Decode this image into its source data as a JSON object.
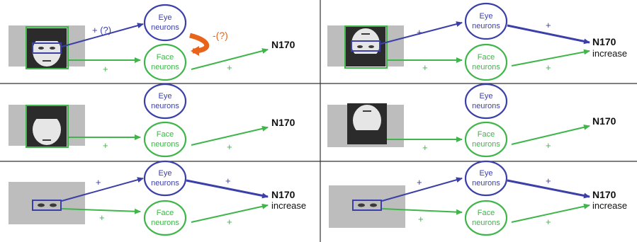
{
  "colors": {
    "eye": "#3b3fa8",
    "face": "#3fb54a",
    "inhibition": "#e8641b",
    "text": "#111111"
  },
  "labels": {
    "eye_neurons_line1": "Eye",
    "eye_neurons_line2": "neurons",
    "face_neurons_line1": "Face",
    "face_neurons_line2": "neurons",
    "n170": "N170",
    "increase": "increase",
    "plus": "+",
    "eye_plus_question": "+ (?)",
    "inhibition": "-(?)"
  },
  "panels": [
    {
      "id": "upright-face",
      "stimulus": "upright full face",
      "eye_to_n170": false,
      "n170_increase": false,
      "inhibition": true
    },
    {
      "id": "inverted-face",
      "stimulus": "inverted full face",
      "eye_to_n170": true,
      "n170_increase": true,
      "inhibition": false
    },
    {
      "id": "upright-no-eyes",
      "stimulus": "upright face without eyes",
      "eye_to_n170": false,
      "n170_increase": false,
      "inhibition": false
    },
    {
      "id": "inverted-no-eyes",
      "stimulus": "inverted face without eyes",
      "eye_to_n170": false,
      "n170_increase": false,
      "inhibition": false
    },
    {
      "id": "upright-eyes-only",
      "stimulus": "upright eyes only",
      "eye_to_n170": true,
      "n170_increase": true,
      "inhibition": false
    },
    {
      "id": "inverted-eyes-only",
      "stimulus": "inverted eyes only",
      "eye_to_n170": true,
      "n170_increase": true,
      "inhibition": false
    }
  ]
}
